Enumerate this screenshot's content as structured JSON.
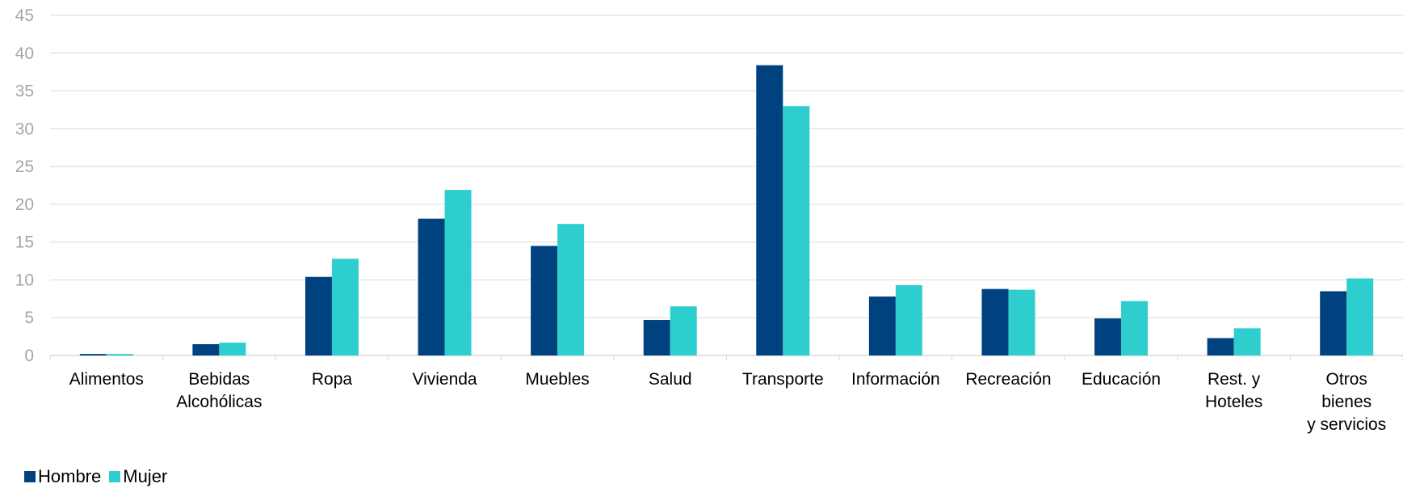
{
  "chart_data": {
    "type": "bar",
    "categories": [
      [
        "Alimentos"
      ],
      [
        "Bebidas",
        "Alcohólicas"
      ],
      [
        "Ropa"
      ],
      [
        "Vivienda"
      ],
      [
        "Muebles"
      ],
      [
        "Salud"
      ],
      [
        "Transporte"
      ],
      [
        "Información"
      ],
      [
        "Recreación"
      ],
      [
        "Educación"
      ],
      [
        "Rest. y",
        "Hoteles"
      ],
      [
        "Otros",
        "bienes",
        "y servicios"
      ]
    ],
    "series": [
      {
        "name": "Hombre",
        "color": "#00427f",
        "values": [
          0.2,
          1.5,
          10.4,
          18.1,
          14.5,
          4.7,
          38.4,
          7.8,
          8.8,
          4.9,
          2.3,
          8.5
        ]
      },
      {
        "name": "Mujer",
        "color": "#2ecece",
        "values": [
          0.2,
          1.7,
          12.8,
          21.9,
          17.4,
          6.5,
          33.0,
          9.3,
          8.7,
          7.2,
          3.6,
          10.2
        ]
      }
    ],
    "ylim": [
      0,
      45
    ],
    "yticks": [
      "0",
      "5",
      "10",
      "15",
      "20",
      "25",
      "30",
      "35",
      "40",
      "45"
    ],
    "grid": true,
    "legend_position": "bottom-left",
    "title": "",
    "xlabel": "",
    "ylabel": ""
  }
}
